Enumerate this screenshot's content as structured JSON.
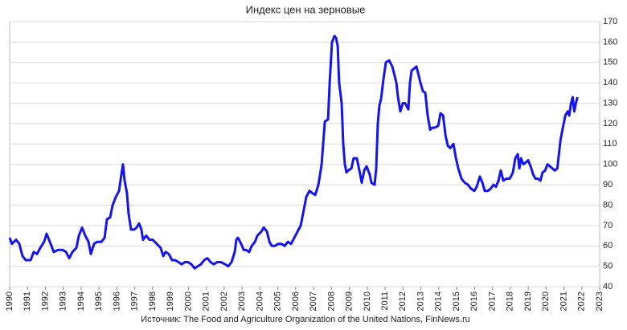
{
  "chart_data": {
    "type": "line",
    "title": "Индекс цен на зерновые",
    "source": "Источник: The Food and Agriculture Organization of the United Nations, FinNews.ru",
    "x": [
      1990.0,
      1990.13,
      1990.36,
      1990.54,
      1990.72,
      1990.9,
      1991.17,
      1991.35,
      1991.53,
      1991.71,
      1991.93,
      1992.07,
      1992.25,
      1992.47,
      1992.7,
      1992.97,
      1993.15,
      1993.33,
      1993.51,
      1993.73,
      1993.87,
      1994.05,
      1994.23,
      1994.41,
      1994.54,
      1994.72,
      1994.9,
      1995.13,
      1995.31,
      1995.44,
      1995.62,
      1995.76,
      1995.94,
      1996.12,
      1996.25,
      1996.34,
      1996.43,
      1996.56,
      1996.65,
      1996.79,
      1996.97,
      1997.1,
      1997.24,
      1997.37,
      1997.46,
      1997.64,
      1997.82,
      1998.0,
      1998.23,
      1998.45,
      1998.59,
      1998.72,
      1998.9,
      1999.08,
      1999.26,
      1999.44,
      1999.62,
      1999.8,
      1999.98,
      2000.16,
      2000.34,
      2000.52,
      2000.7,
      2000.88,
      2001.06,
      2001.24,
      2001.42,
      2001.6,
      2001.82,
      2002.05,
      2002.23,
      2002.41,
      2002.59,
      2002.68,
      2002.77,
      2002.95,
      2003.09,
      2003.22,
      2003.4,
      2003.54,
      2003.72,
      2003.85,
      2004.07,
      2004.21,
      2004.39,
      2004.53,
      2004.66,
      2004.84,
      2005.02,
      2005.2,
      2005.38,
      2005.56,
      2005.74,
      2005.92,
      2006.1,
      2006.28,
      2006.46,
      2006.59,
      2006.77,
      2006.91,
      2007.09,
      2007.27,
      2007.45,
      2007.63,
      2007.81,
      2007.9,
      2008.03,
      2008.17,
      2008.26,
      2008.35,
      2008.43,
      2008.57,
      2008.66,
      2008.75,
      2008.84,
      2008.93,
      2009.11,
      2009.24,
      2009.42,
      2009.56,
      2009.69,
      2009.83,
      2009.96,
      2010.14,
      2010.23,
      2010.41,
      2010.5,
      2010.59,
      2010.68,
      2010.77,
      2010.91,
      2011.04,
      2011.22,
      2011.4,
      2011.49,
      2011.63,
      2011.72,
      2011.85,
      2011.99,
      2012.12,
      2012.3,
      2012.39,
      2012.48,
      2012.62,
      2012.75,
      2012.84,
      2012.98,
      2013.11,
      2013.25,
      2013.38,
      2013.52,
      2013.65,
      2013.79,
      2013.97,
      2014.1,
      2014.24,
      2014.38,
      2014.51,
      2014.64,
      2014.82,
      2014.96,
      2015.09,
      2015.27,
      2015.45,
      2015.63,
      2015.81,
      2015.99,
      2016.12,
      2016.3,
      2016.44,
      2016.57,
      2016.75,
      2016.89,
      2017.07,
      2017.2,
      2017.34,
      2017.47,
      2017.61,
      2017.79,
      2017.97,
      2018.15,
      2018.28,
      2018.42,
      2018.51,
      2018.6,
      2018.73,
      2018.87,
      2019.0,
      2019.14,
      2019.28,
      2019.41,
      2019.54,
      2019.68,
      2019.81,
      2019.95,
      2020.08,
      2020.22,
      2020.35,
      2020.49,
      2020.63,
      2020.72,
      2020.81,
      2020.94,
      2021.08,
      2021.21,
      2021.3,
      2021.4,
      2021.49,
      2021.58,
      2021.67,
      2021.76
    ],
    "series": [
      {
        "color": "#1414f0",
        "values": [
          64,
          61,
          63,
          61,
          55,
          53,
          53,
          57,
          56,
          59,
          62,
          66,
          62,
          57,
          58,
          58,
          57,
          54,
          57,
          59,
          65,
          69,
          65,
          62,
          56,
          61,
          62,
          62,
          64,
          73,
          74,
          80,
          84,
          87,
          95,
          100,
          92,
          86,
          76,
          68,
          68,
          69,
          71,
          68,
          63,
          65,
          63,
          63,
          61,
          59,
          55,
          57,
          56,
          53,
          53,
          52,
          51,
          52,
          52,
          51,
          49,
          50,
          51,
          53,
          54,
          52,
          51,
          52,
          52,
          51,
          50,
          52,
          57,
          63,
          64,
          61,
          58,
          58,
          57,
          60,
          62,
          65,
          67,
          69,
          67,
          62,
          60,
          60,
          61,
          61,
          60,
          62,
          61,
          64,
          67,
          70,
          78,
          84,
          87,
          86,
          85,
          90,
          100,
          121,
          122,
          140,
          160,
          163,
          162,
          158,
          140,
          130,
          110,
          100,
          96,
          97,
          98,
          103,
          103,
          97,
          91,
          97,
          99,
          95,
          91,
          90,
          98,
          120,
          129,
          132,
          142,
          150,
          151,
          148,
          145,
          140,
          133,
          126,
          130,
          130,
          127,
          140,
          146,
          147,
          148,
          145,
          140,
          136,
          135,
          124,
          117,
          118,
          118,
          119,
          125,
          124,
          114,
          109,
          108,
          110,
          103,
          98,
          93,
          91,
          90,
          88,
          87,
          89,
          94,
          91,
          87,
          87,
          88,
          90,
          89,
          92,
          97,
          92,
          93,
          93,
          96,
          103,
          105,
          98,
          103,
          100,
          101,
          102,
          99,
          95,
          93,
          93,
          92,
          96,
          97,
          100,
          99,
          98,
          97,
          98,
          105,
          112,
          118,
          124,
          126,
          124,
          130,
          133,
          126,
          130,
          133
        ]
      }
    ],
    "xlim": [
      1990,
      2023
    ],
    "xticks": [
      1990,
      1991,
      1992,
      1993,
      1994,
      1995,
      1996,
      1997,
      1998,
      1999,
      2000,
      2001,
      2002,
      2003,
      2004,
      2005,
      2006,
      2007,
      2008,
      2009,
      2010,
      2011,
      2012,
      2013,
      2014,
      2015,
      2016,
      2017,
      2018,
      2019,
      2020,
      2021,
      2022,
      2023
    ],
    "ylim": [
      40,
      170
    ],
    "yticks": [
      40,
      50,
      60,
      70,
      80,
      90,
      100,
      110,
      120,
      130,
      140,
      150,
      160,
      170
    ],
    "grid": true
  }
}
